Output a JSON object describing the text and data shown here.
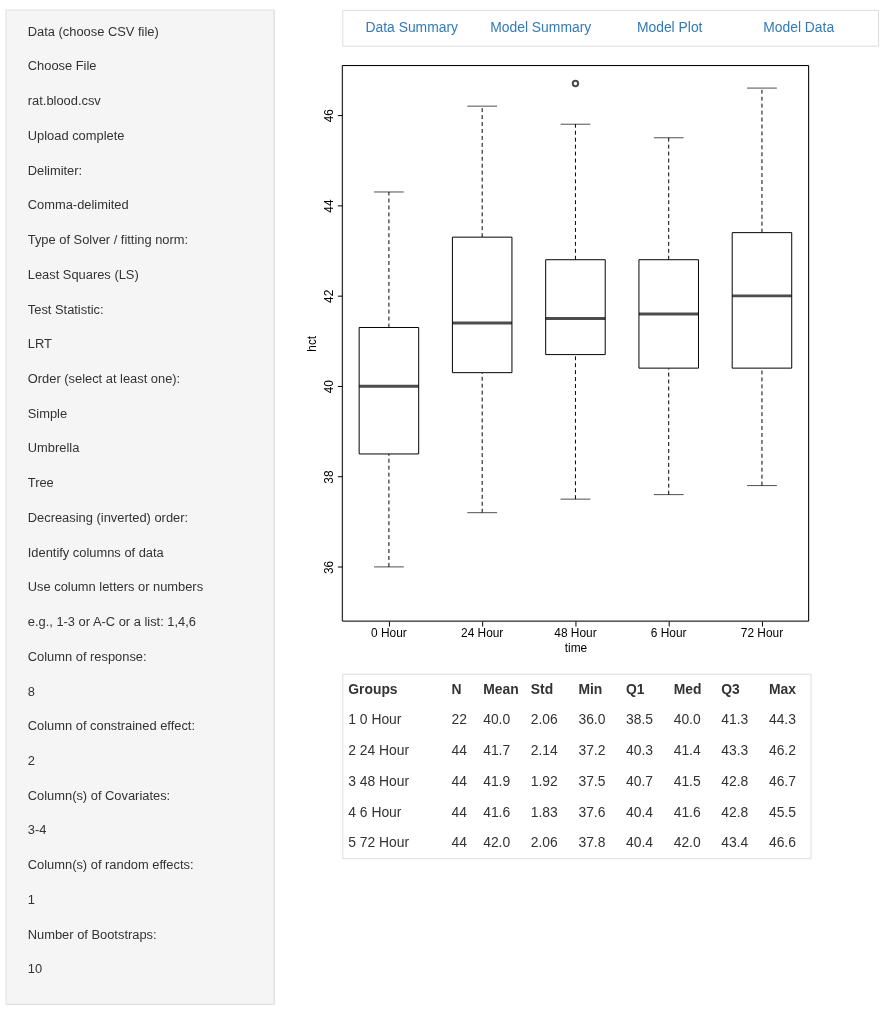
{
  "chart_data": [
    {
      "type": "other",
      "annotations": [
        "Data (choose CSV file)",
        "Choose File",
        "rat.blood.csv",
        "Upload complete",
        "Delimiter:",
        "Comma-delimited",
        "Type of Solver / fitting norm:",
        "Least Squares (LS)",
        "Test Statistic:",
        "LRT",
        "Order (select at least one):",
        "Simple",
        "Umbrella",
        "Tree",
        "Decreasing (inverted) order:",
        "Identify columns of data",
        "Use column letters or numbers",
        "e.g., 1-3 or A-C or a list: 1,4,6",
        "Column of response:",
        "8",
        "Column of constrained effect:",
        "2",
        "Column(s) of Covariates:",
        "3-4",
        "Column(s) of random effects:",
        "1",
        "Number of Bootstraps:",
        "10"
      ]
    },
    {
      "type": "other",
      "annotations": [
        "Data Summary",
        "Model Summary",
        "Model Plot",
        "Model Data"
      ]
    },
    {
      "type": "box",
      "xlabel": "time",
      "ylabel": "hct",
      "grid": false,
      "categories": [
        "0 Hour",
        "24 Hour",
        "48 Hour",
        "6 Hour",
        "72 Hour"
      ],
      "ylim": [
        34.8,
        47.1
      ],
      "yticks": [
        36,
        38,
        40,
        42,
        44,
        46
      ],
      "boxes": [
        {
          "low": 36.0,
          "q1": 38.5,
          "median": 40.0,
          "q3": 41.3,
          "high": 44.3
        },
        {
          "low": 37.2,
          "q1": 40.3,
          "median": 41.4,
          "q3": 43.3,
          "high": 46.2
        },
        {
          "low": 37.5,
          "q1": 40.7,
          "median": 41.5,
          "q3": 42.8,
          "high": 45.8,
          "outliers": [
            46.7
          ]
        },
        {
          "low": 37.6,
          "q1": 40.4,
          "median": 41.6,
          "q3": 42.8,
          "high": 45.5
        },
        {
          "low": 37.8,
          "q1": 40.4,
          "median": 42.0,
          "q3": 43.4,
          "high": 46.6
        }
      ]
    },
    {
      "type": "other",
      "categories": [
        null,
        "Groups",
        "N",
        "Mean",
        "Std",
        "Min",
        "Q1",
        "Med",
        "Q3",
        "Max"
      ],
      "annotations": [
        "1",
        "0 Hour",
        "22",
        "40.0",
        "2.06",
        "36.0",
        "38.5",
        "40.0",
        "41.3",
        "44.3",
        "2",
        "24 Hour",
        "44",
        "41.7",
        "2.14",
        "37.2",
        "40.3",
        "41.4",
        "43.3",
        "46.2",
        "3",
        "48 Hour",
        "44",
        "41.9",
        "1.92",
        "37.5",
        "40.7",
        "41.5",
        "42.8",
        "46.7",
        "4",
        "6 Hour",
        "44",
        "41.6",
        "1.83",
        "37.6",
        "40.4",
        "41.6",
        "42.8",
        "45.5",
        "5",
        "72 Hour",
        "44",
        "42.0",
        "2.06",
        "37.8",
        "40.4",
        "42.0",
        "43.4",
        "46.6"
      ]
    }
  ]
}
